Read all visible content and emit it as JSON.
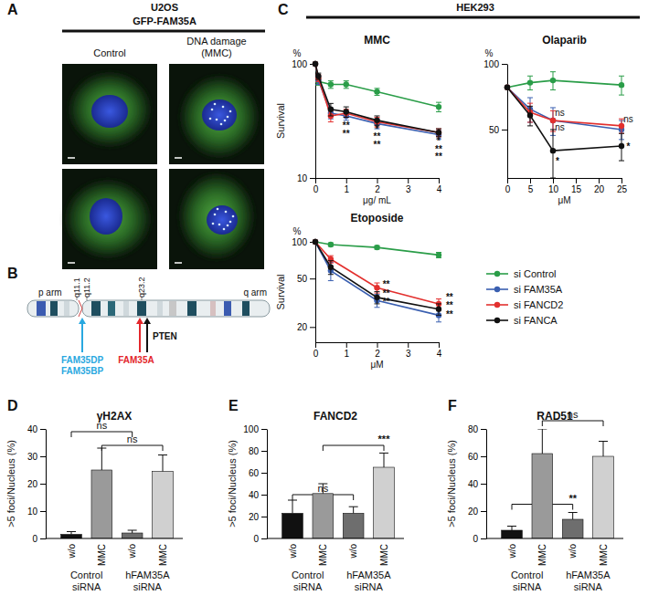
{
  "panel_a": {
    "letter": "A",
    "cell_line": "U2OS",
    "construct": "GFP-FAM35A",
    "conditions": [
      [
        "Control"
      ],
      [
        "DNA damage",
        "(MMC)"
      ]
    ]
  },
  "panel_b": {
    "letter": "B",
    "arms": [
      "p arm",
      "q arm"
    ],
    "bands": [
      "q11.1",
      "q11.2",
      "q23.2"
    ],
    "genes": [
      {
        "names": [
          "FAM35DP",
          "FAM35BP"
        ],
        "color": "#29a8e0"
      },
      {
        "names": [
          "FAM35A"
        ],
        "color": "#e3262b"
      },
      {
        "names": [
          "PTEN"
        ],
        "color": "#111111"
      }
    ]
  },
  "panel_c": {
    "letter": "C",
    "cell_line": "HEK293"
  },
  "chart_data": [
    {
      "type": "line",
      "title": "MMC",
      "x_label": "μg/ mL",
      "y_label": "Survival",
      "y_unit": "%",
      "log": "y",
      "marker": "circle",
      "xlim": [
        0,
        4
      ],
      "xticks": [
        0,
        1,
        2,
        3,
        4
      ],
      "ylim": [
        10,
        100
      ],
      "yticks": [
        10,
        100
      ],
      "x": [
        0,
        0.1,
        0.5,
        1,
        2,
        4
      ],
      "series": [
        {
          "name": "si Control",
          "color": "#2a9d48",
          "values": [
            100,
            70,
            66,
            66,
            57,
            42
          ],
          "errors": [
            0,
            5,
            5,
            5,
            4,
            4
          ]
        },
        {
          "name": "si FAM35A",
          "color": "#3a5fb0",
          "values": [
            100,
            72,
            37,
            35,
            30,
            24
          ],
          "errors": [
            0,
            6,
            4,
            3,
            3,
            2
          ]
        },
        {
          "name": "si FANCD2",
          "color": "#e3302e",
          "values": [
            100,
            75,
            35,
            37,
            31,
            25
          ],
          "errors": [
            0,
            5,
            4,
            3,
            3,
            2
          ]
        },
        {
          "name": "si FANCA",
          "color": "#111111",
          "values": [
            100,
            78,
            40,
            38,
            32,
            25
          ],
          "errors": [
            0,
            5,
            5,
            4,
            3,
            2
          ]
        }
      ],
      "annotations": [
        {
          "x": 1,
          "y": 29,
          "text": "**"
        },
        {
          "x": 1,
          "y": 24.5,
          "text": "**"
        },
        {
          "x": 2,
          "y": 27,
          "text": "*"
        },
        {
          "x": 2,
          "y": 23,
          "text": "**"
        },
        {
          "x": 2,
          "y": 19.5,
          "text": "**"
        },
        {
          "x": 4,
          "y": 21,
          "text": "*"
        },
        {
          "x": 4,
          "y": 18,
          "text": "**"
        },
        {
          "x": 4,
          "y": 15.3,
          "text": "**"
        }
      ]
    },
    {
      "type": "line",
      "title": "Olaparib",
      "x_label": "μM",
      "y_unit": "%",
      "log": "y",
      "marker": "circle",
      "xlim": [
        0,
        25
      ],
      "xticks": [
        0,
        5,
        10,
        15,
        20,
        25
      ],
      "ylim": [
        30,
        100
      ],
      "yticks": [
        50,
        100
      ],
      "x": [
        0,
        5,
        10,
        25
      ],
      "series": [
        {
          "name": "si Control",
          "color": "#2a9d48",
          "values": [
            78,
            82,
            84,
            80
          ],
          "errors": [
            0,
            6,
            8,
            8
          ]
        },
        {
          "name": "si FAM35A",
          "color": "#3a5fb0",
          "values": [
            78,
            62,
            55,
            50
          ],
          "errors": [
            0,
            8,
            8,
            5
          ]
        },
        {
          "name": "si FANCD2",
          "color": "#e3302e",
          "values": [
            78,
            60,
            55,
            52
          ],
          "errors": [
            0,
            6,
            6,
            4
          ]
        },
        {
          "name": "si FANCA",
          "color": "#111111",
          "values": [
            78,
            58,
            40,
            42
          ],
          "errors": [
            0,
            6,
            10,
            6
          ]
        }
      ],
      "annotations": [
        {
          "x": 11.5,
          "y": 60,
          "text": "ns"
        },
        {
          "x": 11.5,
          "y": 51,
          "text": "ns"
        },
        {
          "x": 11,
          "y": 36,
          "text": "*"
        },
        {
          "x": 26.5,
          "y": 56,
          "text": "ns"
        },
        {
          "x": 26.5,
          "y": 42,
          "text": "*"
        }
      ]
    },
    {
      "type": "line",
      "title": "Etoposide",
      "x_label": "μM",
      "y_label": "Survival",
      "y_unit": "%",
      "log": "y",
      "marker": "circle",
      "legend": "right",
      "xlim": [
        0,
        4
      ],
      "xticks": [
        0,
        1,
        2,
        3,
        4
      ],
      "ylim": [
        15,
        100
      ],
      "yticks": [
        20,
        50,
        100
      ],
      "x": [
        0,
        0.5,
        2,
        4
      ],
      "series": [
        {
          "name": "si Control",
          "color": "#2a9d48",
          "values": [
            100,
            95,
            90,
            78
          ],
          "errors": [
            0,
            3,
            3,
            4
          ]
        },
        {
          "name": "si FAM35A",
          "color": "#3a5fb0",
          "values": [
            100,
            58,
            33,
            25
          ],
          "errors": [
            0,
            10,
            4,
            3
          ]
        },
        {
          "name": "si FANCD2",
          "color": "#e3302e",
          "values": [
            100,
            72,
            42,
            31
          ],
          "errors": [
            0,
            5,
            4,
            3
          ]
        },
        {
          "name": "si FANCA",
          "color": "#111111",
          "values": [
            100,
            62,
            35,
            28
          ],
          "errors": [
            0,
            8,
            4,
            3
          ]
        }
      ],
      "annotations": [
        {
          "x": 2.3,
          "y": 45,
          "text": "**"
        },
        {
          "x": 2.3,
          "y": 38,
          "text": "**"
        },
        {
          "x": 2.3,
          "y": 32.5,
          "text": "**"
        },
        {
          "x": 4.35,
          "y": 35,
          "text": "**"
        },
        {
          "x": 4.35,
          "y": 30,
          "text": "**"
        },
        {
          "x": 4.35,
          "y": 25.6,
          "text": "**"
        }
      ]
    },
    {
      "type": "bar",
      "panel_label": "D",
      "title": "γH2AX",
      "y_label": ">5 foci/Nucleus (%)",
      "categories": [
        "w/o",
        "MMC",
        "w/o",
        "MMC"
      ],
      "group_labels": [
        "Control siRNA",
        "hFAM35A siRNA"
      ],
      "values": [
        1.5,
        25,
        2,
        24.5
      ],
      "errors": [
        1,
        8,
        1,
        6
      ],
      "colors": [
        "#111111",
        "#9a9a9a",
        "#6e6e6e",
        "#d0d0d0"
      ],
      "ylim": [
        0,
        40
      ],
      "yticks": [
        0,
        10,
        20,
        30,
        40
      ],
      "comparisons": [
        {
          "from": 0,
          "to": 2,
          "label_at": 1,
          "y": 39,
          "text": "ns"
        },
        {
          "from": 1,
          "to": 3,
          "label_at": 2,
          "y": 34,
          "text": "ns"
        }
      ]
    },
    {
      "type": "bar",
      "panel_label": "E",
      "title": "FANCD2",
      "y_label": ">5 foci/Nucleus (%)",
      "categories": [
        "w/o",
        "MMC",
        "w/o",
        "MMC"
      ],
      "group_labels": [
        "Control siRNA",
        "hFAM35A siRNA"
      ],
      "values": [
        23,
        41,
        23,
        65
      ],
      "errors": [
        12,
        9,
        6,
        13
      ],
      "colors": [
        "#111111",
        "#9a9a9a",
        "#6e6e6e",
        "#d0d0d0"
      ],
      "ylim": [
        0,
        100
      ],
      "yticks": [
        0,
        20,
        40,
        60,
        80,
        100
      ],
      "comparisons": [
        {
          "from": 0,
          "to": 2,
          "label_at": 1,
          "y": 40,
          "text": "ns"
        },
        {
          "from": 1,
          "to": 3,
          "label_at": 3,
          "y": 85,
          "text": "***"
        }
      ]
    },
    {
      "type": "bar",
      "panel_label": "F",
      "title": "RAD51",
      "y_label": ">5 foci/Nucleus (%)",
      "categories": [
        "w/o",
        "MMC",
        "w/o",
        "MMC"
      ],
      "group_labels": [
        "Control siRNA",
        "hFAM35A siRNA"
      ],
      "values": [
        6,
        62,
        14,
        60
      ],
      "errors": [
        3,
        18,
        5,
        11
      ],
      "colors": [
        "#111111",
        "#9a9a9a",
        "#6e6e6e",
        "#d0d0d0"
      ],
      "ylim": [
        0,
        80
      ],
      "yticks": [
        0,
        20,
        40,
        60,
        80
      ],
      "comparisons": [
        {
          "from": 0,
          "to": 2,
          "label_at": 2,
          "y": 25,
          "text": "**"
        },
        {
          "from": 1,
          "to": 3,
          "label_at": 2,
          "y": 86,
          "text": "ns"
        }
      ]
    }
  ]
}
